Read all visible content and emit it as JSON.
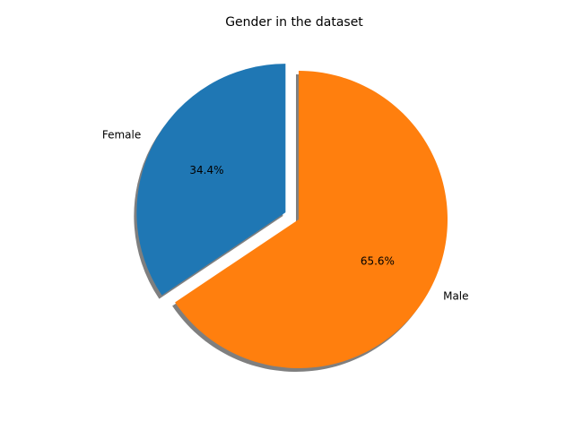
{
  "chart_data": {
    "type": "pie",
    "title": "Gender in the dataset",
    "slices": [
      {
        "label": "Female",
        "value": 34.4,
        "pct_label": "34.4%",
        "color": "#1f77b4",
        "exploded": true
      },
      {
        "label": "Male",
        "value": 65.6,
        "pct_label": "65.6%",
        "color": "#ff7f0e",
        "exploded": false
      }
    ],
    "start_angle_deg": 90,
    "direction": "counterclockwise",
    "shadow": true
  }
}
